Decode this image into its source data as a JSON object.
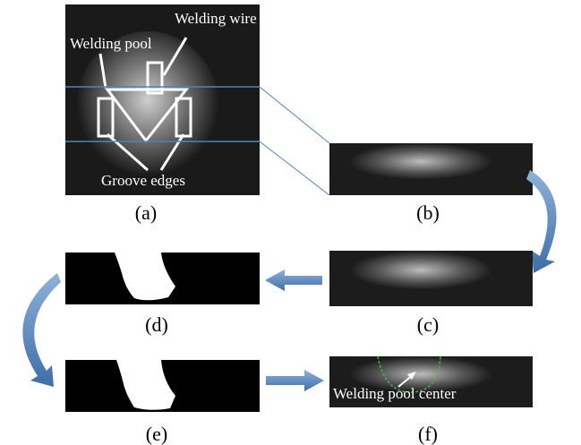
{
  "panels": {
    "a": "(a)",
    "b": "(b)",
    "c": "(c)",
    "d": "(d)",
    "e": "(e)",
    "f": "(f)"
  },
  "annotations": {
    "welding_wire": "Welding wire",
    "welding_pool": "Welding pool",
    "groove_edges": "Groove edges",
    "welding_pool_center": "Welding pool center"
  }
}
